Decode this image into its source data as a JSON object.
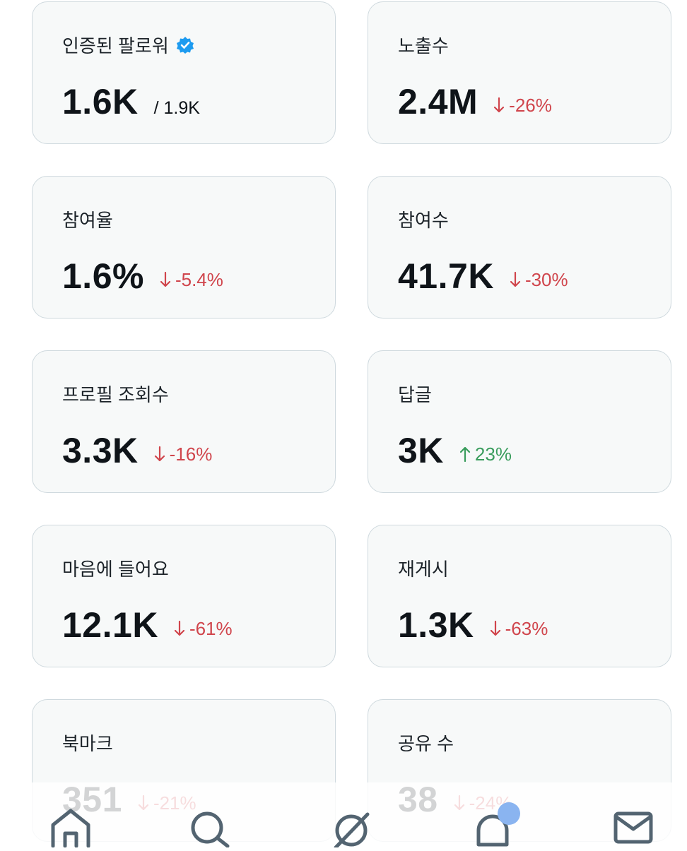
{
  "cards": [
    {
      "label": "인증된 팔로워",
      "value": "1.6K",
      "total": "/ 1.9K"
    },
    {
      "label": "노출수",
      "value": "2.4M",
      "change": "-26%",
      "trend": "down"
    },
    {
      "label": "참여율",
      "value": "1.6%",
      "change": "-5.4%",
      "trend": "down"
    },
    {
      "label": "참여수",
      "value": "41.7K",
      "change": "-30%",
      "trend": "down"
    },
    {
      "label": "프로필 조회수",
      "value": "3.3K",
      "change": "-16%",
      "trend": "down"
    },
    {
      "label": "답글",
      "value": "3K",
      "change": "23%",
      "trend": "up"
    },
    {
      "label": "마음에 들어요",
      "value": "12.1K",
      "change": "-61%",
      "trend": "down"
    },
    {
      "label": "재게시",
      "value": "1.3K",
      "change": "-63%",
      "trend": "down"
    },
    {
      "label": "북마크",
      "value": "351",
      "change": "-21%",
      "trend": "down"
    },
    {
      "label": "공유 수",
      "value": "38",
      "change": "-24%",
      "trend": "down"
    }
  ]
}
